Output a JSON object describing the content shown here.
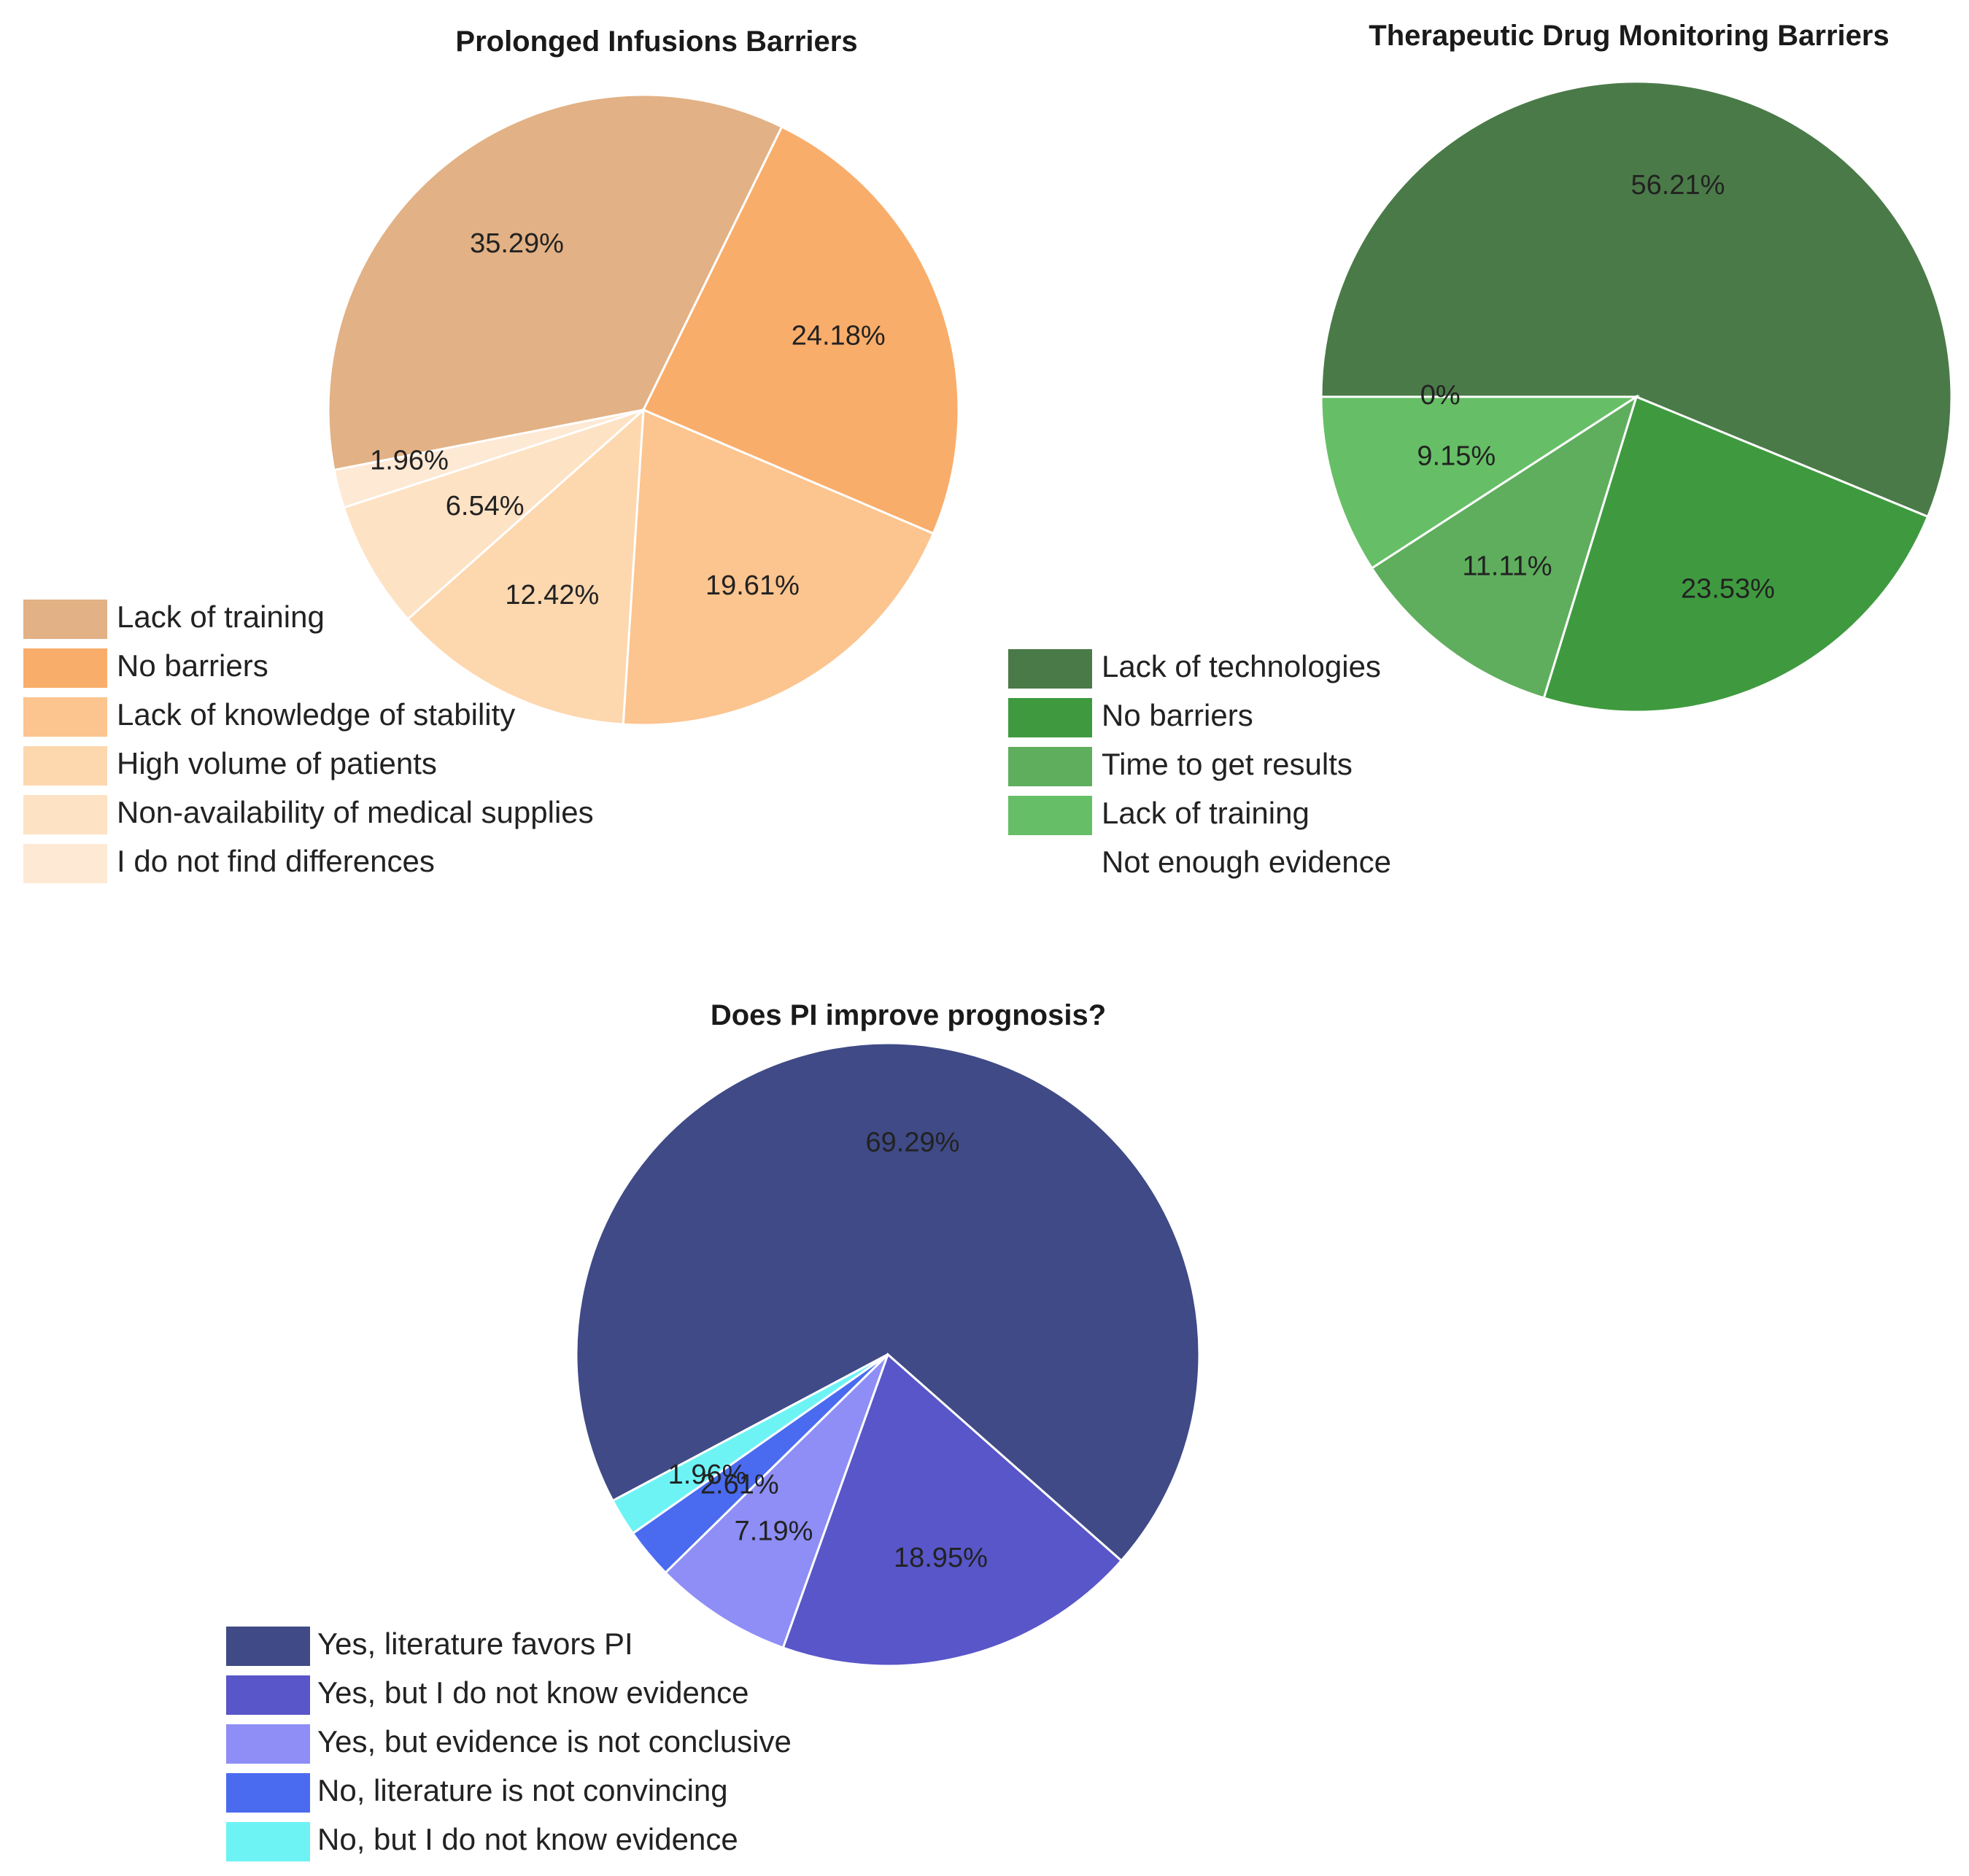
{
  "chart_data": [
    {
      "type": "pie",
      "title": "Prolonged Infusions Barriers",
      "slices": [
        {
          "label": "Lack of training",
          "value": 35.29,
          "value_label": "35.29%",
          "color": "#E2B185"
        },
        {
          "label": "No barriers",
          "value": 24.18,
          "value_label": "24.18%",
          "color": "#F9AD6A"
        },
        {
          "label": "Lack of knowledge of stability",
          "value": 19.61,
          "value_label": "19.61%",
          "color": "#FCC48E"
        },
        {
          "label": "High volume of patients",
          "value": 12.42,
          "value_label": "12.42%",
          "color": "#FDD7AE"
        },
        {
          "label": "Non-availability of medical supplies",
          "value": 6.54,
          "value_label": "6.54%",
          "color": "#FEE2C4"
        },
        {
          "label": "I do not find differences",
          "value": 1.96,
          "value_label": "1.96%",
          "color": "#FEE9D5"
        }
      ],
      "legend_position": "bottom-left"
    },
    {
      "type": "pie",
      "title": "Therapeutic Drug Monitoring Barriers",
      "slices": [
        {
          "label": "Lack of technologies",
          "value": 56.21,
          "value_label": "56.21%",
          "color": "#4A7A48"
        },
        {
          "label": "No barriers",
          "value": 23.53,
          "value_label": "23.53%",
          "color": "#3F9A3F"
        },
        {
          "label": "Time to get results",
          "value": 11.11,
          "value_label": "11.11%",
          "color": "#5FAE5D"
        },
        {
          "label": "Lack of training",
          "value": 9.15,
          "value_label": "9.15%",
          "color": "#66BF66"
        },
        {
          "label": "Not enough evidence",
          "value": 0,
          "value_label": "0%",
          "color": "#FFFFFF"
        }
      ],
      "legend_position": "bottom-left"
    },
    {
      "type": "pie",
      "title": "Does PI improve prognosis?",
      "slices": [
        {
          "label": "Yes, literature favors PI",
          "value": 69.29,
          "value_label": "69.29%",
          "color": "#3F4A86"
        },
        {
          "label": "Yes, but I do not know evidence",
          "value": 18.95,
          "value_label": "18.95%",
          "color": "#5856C8"
        },
        {
          "label": "Yes, but evidence is not conclusive",
          "value": 7.19,
          "value_label": "7.19%",
          "color": "#8E8EF6"
        },
        {
          "label": "No, literature is not convincing",
          "value": 2.61,
          "value_label": "2.61%",
          "color": "#4A6BF0"
        },
        {
          "label": "No,  but I do not know evidence",
          "value": 1.96,
          "value_label": "1.96%",
          "color": "#6EF3F5"
        }
      ],
      "legend_position": "bottom-left"
    }
  ]
}
